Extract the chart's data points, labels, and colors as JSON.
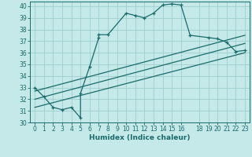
{
  "xlabel": "Humidex (Indice chaleur)",
  "background_color": "#c5e8e8",
  "grid_color": "#9ecece",
  "line_color": "#1a6b6b",
  "xlim": [
    -0.5,
    23.5
  ],
  "ylim": [
    30,
    40.4
  ],
  "xticks": [
    0,
    1,
    2,
    3,
    4,
    5,
    6,
    7,
    8,
    9,
    10,
    11,
    12,
    13,
    14,
    15,
    16,
    18,
    19,
    20,
    21,
    22,
    23
  ],
  "yticks": [
    30,
    31,
    32,
    33,
    34,
    35,
    36,
    37,
    38,
    39,
    40
  ],
  "main_x": [
    0,
    1,
    2,
    3,
    4,
    5,
    5,
    6,
    7,
    7,
    8,
    10,
    11,
    12,
    13,
    14,
    15,
    16,
    17,
    19,
    20,
    21,
    22,
    23
  ],
  "main_y": [
    33.0,
    32.2,
    31.3,
    31.1,
    31.3,
    30.4,
    32.5,
    34.8,
    37.3,
    37.55,
    37.55,
    39.4,
    39.2,
    39.0,
    39.4,
    40.1,
    40.2,
    40.1,
    37.5,
    37.3,
    37.2,
    36.9,
    36.1,
    36.2
  ],
  "trend1_x": [
    0,
    23
  ],
  "trend1_y": [
    31.3,
    36.0
  ],
  "trend2_x": [
    0,
    23
  ],
  "trend2_y": [
    32.0,
    36.8
  ],
  "trend3_x": [
    0,
    23
  ],
  "trend3_y": [
    32.7,
    37.5
  ],
  "tick_fontsize": 5.5,
  "xlabel_fontsize": 6.5
}
